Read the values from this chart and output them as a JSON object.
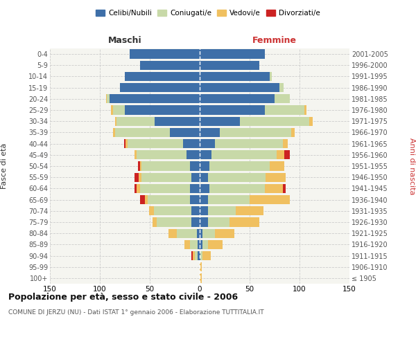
{
  "age_groups": [
    "100+",
    "95-99",
    "90-94",
    "85-89",
    "80-84",
    "75-79",
    "70-74",
    "65-69",
    "60-64",
    "55-59",
    "50-54",
    "45-49",
    "40-44",
    "35-39",
    "30-34",
    "25-29",
    "20-24",
    "15-19",
    "10-14",
    "5-9",
    "0-4"
  ],
  "birth_years": [
    "≤ 1905",
    "1906-1910",
    "1911-1915",
    "1916-1920",
    "1921-1925",
    "1926-1930",
    "1931-1935",
    "1936-1940",
    "1941-1945",
    "1946-1950",
    "1951-1955",
    "1956-1960",
    "1961-1965",
    "1966-1970",
    "1971-1975",
    "1976-1980",
    "1981-1985",
    "1986-1990",
    "1991-1995",
    "1996-2000",
    "2001-2005"
  ],
  "maschi": {
    "celibe": [
      0,
      0,
      2,
      2,
      3,
      8,
      8,
      10,
      10,
      8,
      10,
      13,
      17,
      30,
      45,
      75,
      90,
      80,
      75,
      60,
      70
    ],
    "coniugato": [
      0,
      0,
      3,
      8,
      20,
      35,
      38,
      42,
      50,
      50,
      48,
      50,
      55,
      55,
      38,
      12,
      3,
      0,
      0,
      0,
      0
    ],
    "vedovo": [
      0,
      0,
      2,
      5,
      8,
      4,
      5,
      3,
      3,
      3,
      2,
      2,
      2,
      2,
      2,
      2,
      1,
      0,
      0,
      0,
      0
    ],
    "divorziato": [
      0,
      0,
      1,
      0,
      0,
      0,
      0,
      5,
      2,
      4,
      2,
      0,
      2,
      0,
      0,
      0,
      0,
      0,
      0,
      0,
      0
    ]
  },
  "femmine": {
    "nubile": [
      0,
      0,
      1,
      3,
      3,
      8,
      8,
      8,
      10,
      8,
      10,
      12,
      15,
      20,
      40,
      65,
      75,
      80,
      70,
      60,
      65
    ],
    "coniugata": [
      0,
      0,
      2,
      5,
      12,
      22,
      28,
      42,
      55,
      58,
      60,
      65,
      68,
      72,
      70,
      40,
      15,
      4,
      2,
      0,
      0
    ],
    "vedova": [
      2,
      2,
      8,
      15,
      20,
      30,
      28,
      40,
      18,
      20,
      15,
      8,
      5,
      3,
      3,
      2,
      0,
      0,
      0,
      0,
      0
    ],
    "divorziata": [
      0,
      0,
      0,
      0,
      0,
      0,
      0,
      0,
      3,
      0,
      0,
      5,
      0,
      0,
      0,
      0,
      0,
      0,
      0,
      0,
      0
    ]
  },
  "color_celibe": "#3e6fa8",
  "color_coniugato": "#c8d9a8",
  "color_vedovo": "#f0c060",
  "color_divorziato": "#cc2222",
  "xlim": 150,
  "title": "Popolazione per età, sesso e stato civile - 2006",
  "subtitle": "COMUNE DI JERZU (NU) - Dati ISTAT 1° gennaio 2006 - Elaborazione TUTTITALIA.IT",
  "ylabel_left": "Fasce di età",
  "ylabel_right": "Anni di nascita",
  "xlabel_maschi": "Maschi",
  "xlabel_femmine": "Femmine",
  "bg_color": "#f5f5f0",
  "legend_labels": [
    "Celibi/Nubili",
    "Coniugati/e",
    "Vedovi/e",
    "Divorziati/e"
  ]
}
